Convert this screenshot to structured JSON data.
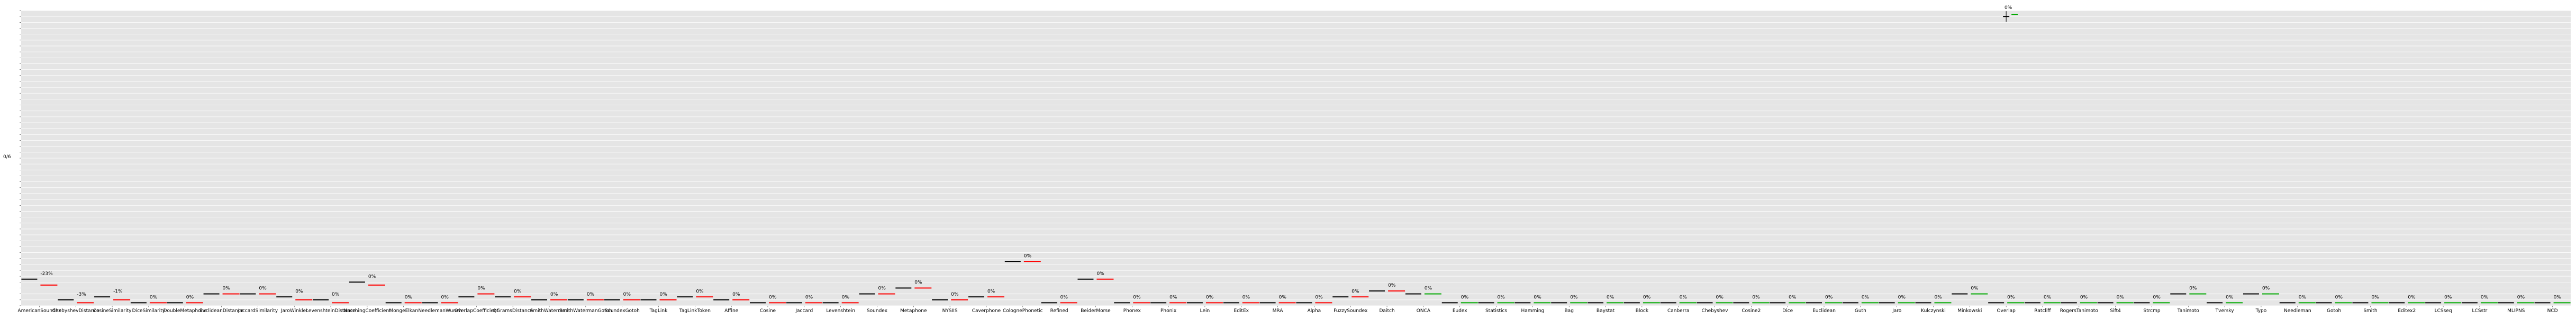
{
  "chart_data": {
    "type": "bar",
    "title": "",
    "xlabel": "",
    "ylabel": "0/6",
    "ylim": [
      0,
      1
    ],
    "grid": true,
    "legend": "none",
    "colors": {
      "background": "#e5e5e5",
      "grid": "#ffffff",
      "base_mark": "#000000",
      "down_mark": "#ff0000",
      "up_mark": "#00aa00",
      "label": "#000000"
    },
    "annotation_color_by_direction": {
      "down": "#ff0000",
      "up": "#00aa00"
    },
    "categories": [
      "AmericanSoundex",
      "ChebyshevDistance",
      "CosineSimilarity",
      "DiceSimilarity",
      "DoubleMetaphone",
      "EuclideanDistance",
      "JaccardSimilarity",
      "JaroWinkler",
      "LevenshteinDistance",
      "MatchingCoefficient",
      "MongeElkan",
      "NeedlemanWunch",
      "OverlapCoefficient",
      "QGramsDistance",
      "SmithWaterman",
      "SmithWatermanGotoh",
      "SoundexGotoh",
      "TagLink",
      "TagLinkToken",
      "Affine",
      "Cosine",
      "Jaccard",
      "Levenshtein",
      "Soundex",
      "Metaphone",
      "NYSIIS",
      "Caverphone",
      "ColognePhonetic",
      "Refined",
      "BeiderMorse",
      "Phonex",
      "Phonix",
      "Lein",
      "EditEx",
      "MRA",
      "Alpha",
      "FuzzySoundex",
      "Daitch",
      "ONCA",
      "Eudex",
      "Statistics",
      "Hamming",
      "Bag",
      "Baystat",
      "Block",
      "Canberra",
      "Chebyshev",
      "Cosine2",
      "Dice",
      "Euclidean",
      "Guth",
      "Jaro",
      "Kulczynski",
      "Minkowski",
      "Overlap",
      "Ratcliff",
      "RogersTanimoto",
      "Sift4",
      "Strcmp",
      "Tanimoto",
      "Tversky",
      "Typo",
      "Needleman",
      "Gotoh",
      "Smith",
      "Editex2",
      "LCSseq",
      "LCSstr",
      "MLIPNS",
      "NCD"
    ],
    "series": [
      {
        "values": [
          0.09,
          0.02,
          0.03,
          0.01,
          0.01,
          0.04,
          0.04,
          0.03,
          0.02,
          0.08,
          0.01,
          0.01,
          0.03,
          0.03,
          0.02,
          0.02,
          0.02,
          0.02,
          0.03,
          0.02,
          0.01,
          0.01,
          0.01,
          0.04,
          0.06,
          0.02,
          0.03,
          0.15,
          0.01,
          0.09,
          0.01,
          0.01,
          0.01,
          0.01,
          0.01,
          0.01,
          0.03,
          0.05,
          0.04,
          0.01,
          0.01,
          0.01,
          0.01,
          0.01,
          0.01,
          0.01,
          0.01,
          0.01,
          0.01,
          0.01,
          0.01,
          0.01,
          0.01,
          0.04,
          0.01,
          0.01,
          0.01,
          0.01,
          0.01,
          0.04,
          0.01,
          0.04,
          0.01,
          0.01,
          0.01,
          0.01,
          0.01,
          0.01,
          0.01,
          0.01
        ]
      },
      {
        "values": [
          0.07,
          0.01,
          0.02,
          0.01,
          0.01,
          0.04,
          0.04,
          0.02,
          0.01,
          0.07,
          0.01,
          0.01,
          0.04,
          0.03,
          0.02,
          0.02,
          0.02,
          0.02,
          0.03,
          0.02,
          0.01,
          0.01,
          0.01,
          0.04,
          0.06,
          0.02,
          0.03,
          0.15,
          0.01,
          0.09,
          0.01,
          0.01,
          0.01,
          0.01,
          0.01,
          0.01,
          0.03,
          0.05,
          0.04,
          0.01,
          0.01,
          0.01,
          0.01,
          0.01,
          0.01,
          0.01,
          0.01,
          0.01,
          0.01,
          0.01,
          0.01,
          0.01,
          0.01,
          0.04,
          0.01,
          0.01,
          0.01,
          0.01,
          0.01,
          0.04,
          0.01,
          0.04,
          0.01,
          0.01,
          0.01,
          0.01,
          0.01,
          0.01,
          0.01,
          0.01
        ]
      }
    ],
    "annotations": [
      "-23%",
      "-3%",
      "-1%",
      "0%",
      "0%",
      "0%",
      "0%",
      "0%",
      "0%",
      "0%",
      "0%",
      "0%",
      "0%",
      "0%",
      "0%",
      "0%",
      "0%",
      "0%",
      "0%",
      "0%",
      "0%",
      "0%",
      "0%",
      "0%",
      "0%",
      "0%",
      "0%",
      "0%",
      "0%",
      "0%",
      "0%",
      "0%",
      "0%",
      "0%",
      "0%",
      "0%",
      "0%",
      "0%",
      "0%",
      "0%",
      "0%",
      "0%",
      "0%",
      "0%",
      "0%",
      "0%",
      "0%",
      "0%",
      "0%",
      "0%",
      "0%",
      "0%",
      "0%",
      "0%",
      "0%",
      "0%",
      "0%",
      "0%",
      "0%",
      "0%",
      "0%",
      "0%",
      "0%",
      "0%",
      "0%",
      "0%",
      "0%",
      "0%",
      "0%",
      "0%"
    ],
    "annotation_direction": [
      "down",
      "down",
      "down",
      "down",
      "down",
      "down",
      "down",
      "down",
      "down",
      "down",
      "down",
      "down",
      "down",
      "down",
      "down",
      "down",
      "down",
      "down",
      "down",
      "down",
      "down",
      "down",
      "down",
      "down",
      "down",
      "down",
      "down",
      "down",
      "down",
      "down",
      "down",
      "down",
      "down",
      "down",
      "down",
      "down",
      "down",
      "down",
      "up",
      "up",
      "up",
      "up",
      "up",
      "up",
      "up",
      "up",
      "up",
      "up",
      "up",
      "up",
      "up",
      "up",
      "up",
      "up",
      "up",
      "up",
      "up",
      "up",
      "up",
      "up",
      "up",
      "up",
      "up",
      "up",
      "up",
      "up",
      "up",
      "up",
      "up",
      "up"
    ],
    "outlier": {
      "category_index": 54,
      "value": 0.98,
      "label": "0%"
    }
  }
}
